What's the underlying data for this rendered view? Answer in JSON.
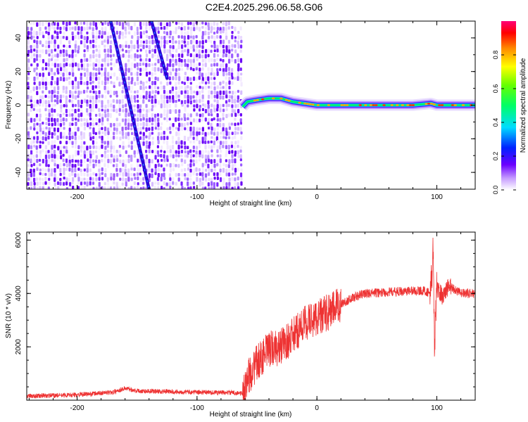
{
  "title": "C2E4.2025.296.06.58.G06",
  "chart_data": [
    {
      "type": "heatmap",
      "xlabel": "Height of straight line (km)",
      "ylabel": "Frequency (Hz)",
      "xlim": [
        -242,
        132
      ],
      "ylim": [
        -50,
        50
      ],
      "xticks": [
        -200,
        -100,
        0,
        100
      ],
      "yticks": [
        -40,
        -20,
        0,
        20,
        40
      ],
      "colorbar": {
        "label": "Normalized spectral amplitude",
        "range": [
          0,
          1
        ],
        "ticks": [
          "0.0",
          "0.2",
          "0.4",
          "0.6",
          "0.8"
        ]
      },
      "noise_region_x": [
        -242,
        -62
      ],
      "tracks": [
        {
          "x0": -172,
          "y0": 50,
          "x1": -140,
          "y1": -50
        },
        {
          "x0": -138,
          "y0": 50,
          "x1": -125,
          "y1": 16
        }
      ],
      "signal_line": {
        "x": [
          -62,
          -58,
          -50,
          -40,
          -30,
          -20,
          -10,
          0,
          20,
          50,
          80,
          95,
          100,
          132
        ],
        "freq": [
          -1,
          2,
          3,
          4,
          4,
          2,
          1,
          0,
          0,
          0,
          0,
          1,
          0,
          0
        ]
      },
      "grid": false
    },
    {
      "type": "line",
      "xlabel": "Height of straight line (km)",
      "ylabel": "SNR (10 * v/v)",
      "xlim": [
        -242,
        132
      ],
      "ylim": [
        0,
        6300
      ],
      "xticks": [
        -200,
        -100,
        0,
        100
      ],
      "yticks": [
        2000,
        4000,
        6000
      ],
      "series": [
        {
          "color": "#ee3333",
          "x": [
            -242,
            -200,
            -170,
            -160,
            -150,
            -100,
            -70,
            -62,
            -58,
            -50,
            -40,
            -30,
            -20,
            -10,
            0,
            10,
            20,
            30,
            40,
            60,
            80,
            90,
            95,
            97,
            98,
            100,
            105,
            110,
            120,
            132
          ],
          "y": [
            150,
            200,
            300,
            450,
            350,
            300,
            280,
            250,
            800,
            1400,
            1900,
            2000,
            2400,
            2900,
            3100,
            3300,
            3600,
            3850,
            4000,
            4050,
            4100,
            4100,
            4000,
            5800,
            1800,
            4200,
            3900,
            4300,
            4000,
            4000
          ]
        }
      ],
      "grid": false
    }
  ]
}
